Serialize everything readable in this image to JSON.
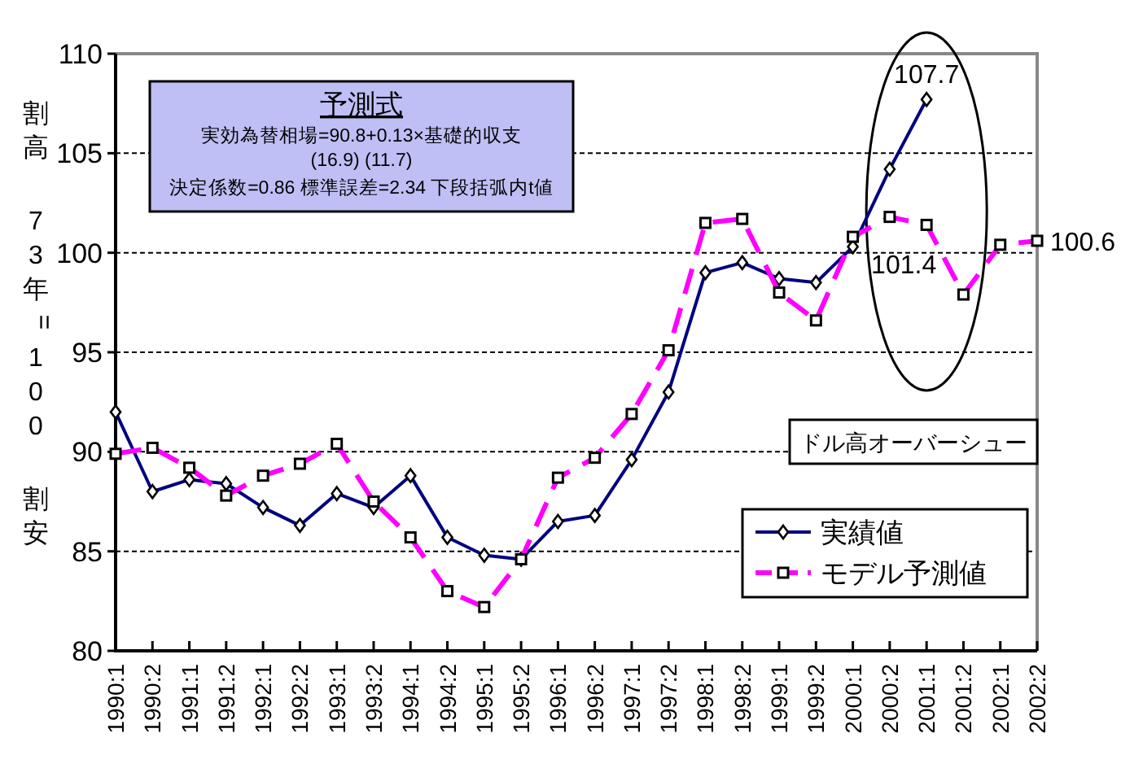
{
  "chart_data": {
    "type": "line",
    "ylabel": "割高 73年=100 割安",
    "categories": [
      "1990:1",
      "1990:2",
      "1991:1",
      "1991:2",
      "1992:1",
      "1992:2",
      "1993:1",
      "1993:2",
      "1994:1",
      "1994:2",
      "1995:1",
      "1995:2",
      "1996:1",
      "1996:2",
      "1997:1",
      "1997:2",
      "1998:1",
      "1998:2",
      "1999:1",
      "1999:2",
      "2000:1",
      "2000:2",
      "2001:1",
      "2001:2",
      "2002:1",
      "2002:2"
    ],
    "ylim": [
      80,
      110
    ],
    "yticks": [
      80,
      85,
      90,
      95,
      100,
      105,
      110
    ],
    "grid": "y",
    "legend": "bottom right",
    "series": [
      {
        "name": "実績値",
        "color": "#000080",
        "marker": "diamond",
        "line_style": "solid",
        "values": [
          92.0,
          88.0,
          88.6,
          88.4,
          87.2,
          86.3,
          87.9,
          87.2,
          88.8,
          85.7,
          84.8,
          84.6,
          86.5,
          86.8,
          89.6,
          93.0,
          99.0,
          99.5,
          98.7,
          98.5,
          100.3,
          104.2,
          107.7,
          null,
          null,
          null
        ],
        "value_labels": [
          null,
          null,
          null,
          null,
          null,
          null,
          null,
          null,
          null,
          null,
          null,
          null,
          null,
          null,
          null,
          null,
          null,
          null,
          null,
          null,
          null,
          null,
          "107.7",
          null,
          null,
          null
        ]
      },
      {
        "name": "モデル予測値",
        "color": "#ff00ff",
        "marker": "square",
        "line_style": "dashed",
        "values": [
          89.9,
          90.2,
          89.2,
          87.8,
          88.8,
          89.4,
          90.4,
          87.5,
          85.7,
          83.0,
          82.2,
          84.6,
          88.7,
          89.7,
          91.9,
          95.1,
          101.5,
          101.7,
          98.0,
          96.6,
          100.8,
          101.8,
          101.4,
          97.9,
          100.4,
          100.6
        ],
        "value_labels": [
          null,
          null,
          null,
          null,
          null,
          null,
          null,
          null,
          null,
          null,
          null,
          null,
          null,
          null,
          null,
          null,
          null,
          null,
          null,
          null,
          null,
          null,
          "101.4",
          null,
          null,
          "100.6"
        ]
      }
    ],
    "annotations": [
      "予測式",
      "実効為替相場=90.8+0.13×基礎的収支",
      "(16.9) (11.7)",
      "決定係数=0.86 標準誤差=2.34 下段括弧内t値",
      "ドル高オーバーシュー"
    ]
  }
}
